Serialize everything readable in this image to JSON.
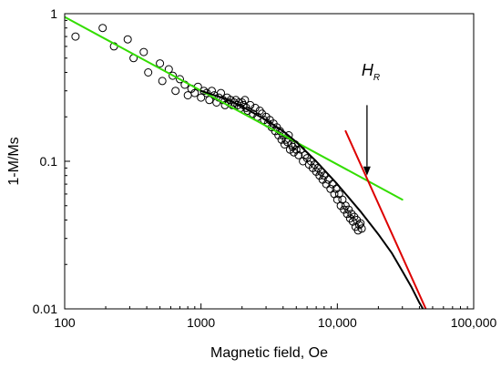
{
  "chart_data": {
    "type": "scatter",
    "title": "",
    "xlabel": "Magnetic field, Oe",
    "ylabel": "1-M/Ms",
    "xscale": "log",
    "yscale": "log",
    "xlim": [
      100,
      100000
    ],
    "ylim": [
      0.01,
      1
    ],
    "x_tick_values": [
      100,
      1000,
      10000,
      100000
    ],
    "x_tick_labels": [
      "100",
      "1000",
      "10,000",
      "100,000"
    ],
    "y_tick_values": [
      0.01,
      0.1,
      1
    ],
    "y_tick_labels": [
      "0.01",
      "0.1",
      "1"
    ],
    "grid": false,
    "legend": "none",
    "series": [
      {
        "kind": "markers",
        "marker": "open-circle",
        "color": "#000000",
        "points": [
          [
            120,
            0.7
          ],
          [
            190,
            0.8
          ],
          [
            230,
            0.6
          ],
          [
            290,
            0.67
          ],
          [
            320,
            0.5
          ],
          [
            380,
            0.55
          ],
          [
            410,
            0.4
          ],
          [
            500,
            0.46
          ],
          [
            520,
            0.35
          ],
          [
            580,
            0.42
          ],
          [
            620,
            0.38
          ],
          [
            650,
            0.3
          ],
          [
            700,
            0.36
          ],
          [
            760,
            0.33
          ],
          [
            800,
            0.28
          ],
          [
            850,
            0.31
          ],
          [
            900,
            0.29
          ],
          [
            950,
            0.32
          ],
          [
            1000,
            0.27
          ],
          [
            1050,
            0.3
          ],
          [
            1100,
            0.29
          ],
          [
            1150,
            0.26
          ],
          [
            1200,
            0.3
          ],
          [
            1250,
            0.28
          ],
          [
            1300,
            0.25
          ],
          [
            1350,
            0.27
          ],
          [
            1400,
            0.29
          ],
          [
            1450,
            0.26
          ],
          [
            1500,
            0.24
          ],
          [
            1550,
            0.27
          ],
          [
            1600,
            0.25
          ],
          [
            1650,
            0.26
          ],
          [
            1700,
            0.24
          ],
          [
            1750,
            0.25
          ],
          [
            1800,
            0.26
          ],
          [
            1850,
            0.24
          ],
          [
            1900,
            0.25
          ],
          [
            1950,
            0.23
          ],
          [
            2000,
            0.25
          ],
          [
            2050,
            0.24
          ],
          [
            2100,
            0.26
          ],
          [
            2150,
            0.23
          ],
          [
            2200,
            0.22
          ],
          [
            2300,
            0.24
          ],
          [
            2400,
            0.21
          ],
          [
            2500,
            0.23
          ],
          [
            2600,
            0.2
          ],
          [
            2700,
            0.22
          ],
          [
            2800,
            0.21
          ],
          [
            2900,
            0.19
          ],
          [
            3000,
            0.2
          ],
          [
            3100,
            0.18
          ],
          [
            3200,
            0.19
          ],
          [
            3300,
            0.17
          ],
          [
            3400,
            0.18
          ],
          [
            3500,
            0.16
          ],
          [
            3600,
            0.17
          ],
          [
            3700,
            0.15
          ],
          [
            3800,
            0.16
          ],
          [
            3900,
            0.14
          ],
          [
            4000,
            0.15
          ],
          [
            4100,
            0.13
          ],
          [
            4200,
            0.14
          ],
          [
            4300,
            0.135
          ],
          [
            4400,
            0.15
          ],
          [
            4500,
            0.12
          ],
          [
            4600,
            0.13
          ],
          [
            4700,
            0.125
          ],
          [
            4800,
            0.115
          ],
          [
            4900,
            0.13
          ],
          [
            5000,
            0.12
          ],
          [
            5200,
            0.11
          ],
          [
            5400,
            0.12
          ],
          [
            5600,
            0.1
          ],
          [
            5800,
            0.11
          ],
          [
            6000,
            0.105
          ],
          [
            6200,
            0.095
          ],
          [
            6400,
            0.1
          ],
          [
            6600,
            0.09
          ],
          [
            6800,
            0.095
          ],
          [
            7000,
            0.085
          ],
          [
            7200,
            0.09
          ],
          [
            7400,
            0.08
          ],
          [
            7600,
            0.085
          ],
          [
            7800,
            0.075
          ],
          [
            8000,
            0.08
          ],
          [
            8300,
            0.07
          ],
          [
            8600,
            0.075
          ],
          [
            8900,
            0.065
          ],
          [
            9200,
            0.07
          ],
          [
            9500,
            0.06
          ],
          [
            9800,
            0.065
          ],
          [
            10000,
            0.055
          ],
          [
            10300,
            0.06
          ],
          [
            10600,
            0.05
          ],
          [
            10900,
            0.055
          ],
          [
            11200,
            0.047
          ],
          [
            11500,
            0.05
          ],
          [
            11800,
            0.044
          ],
          [
            12100,
            0.047
          ],
          [
            12400,
            0.041
          ],
          [
            12700,
            0.044
          ],
          [
            13000,
            0.039
          ],
          [
            13300,
            0.042
          ],
          [
            13600,
            0.036
          ],
          [
            13900,
            0.04
          ],
          [
            14200,
            0.034
          ],
          [
            14500,
            0.037
          ],
          [
            14800,
            0.038
          ],
          [
            15100,
            0.035
          ]
        ]
      },
      {
        "kind": "line",
        "color": "#33dd00",
        "points": [
          [
            100,
            0.95
          ],
          [
            30000,
            0.055
          ]
        ]
      },
      {
        "kind": "line",
        "color": "#000000",
        "points": [
          [
            1000,
            0.3
          ],
          [
            1500,
            0.265
          ],
          [
            2000,
            0.235
          ],
          [
            3000,
            0.19
          ],
          [
            4000,
            0.16
          ],
          [
            5000,
            0.135
          ],
          [
            7000,
            0.1
          ],
          [
            10000,
            0.07
          ],
          [
            15000,
            0.045
          ],
          [
            20000,
            0.032
          ],
          [
            25000,
            0.024
          ],
          [
            30000,
            0.018
          ],
          [
            35000,
            0.014
          ],
          [
            40000,
            0.011
          ],
          [
            43000,
            0.0098
          ]
        ]
      },
      {
        "kind": "line",
        "color": "#dd0000",
        "points": [
          [
            11500,
            0.16
          ],
          [
            45000,
            0.0098
          ]
        ]
      }
    ],
    "annotations": [
      {
        "text": "H",
        "subscript": "R",
        "x": 16500,
        "y_text": 0.38,
        "arrow_from": 0.24,
        "arrow_to": 0.08
      }
    ]
  }
}
